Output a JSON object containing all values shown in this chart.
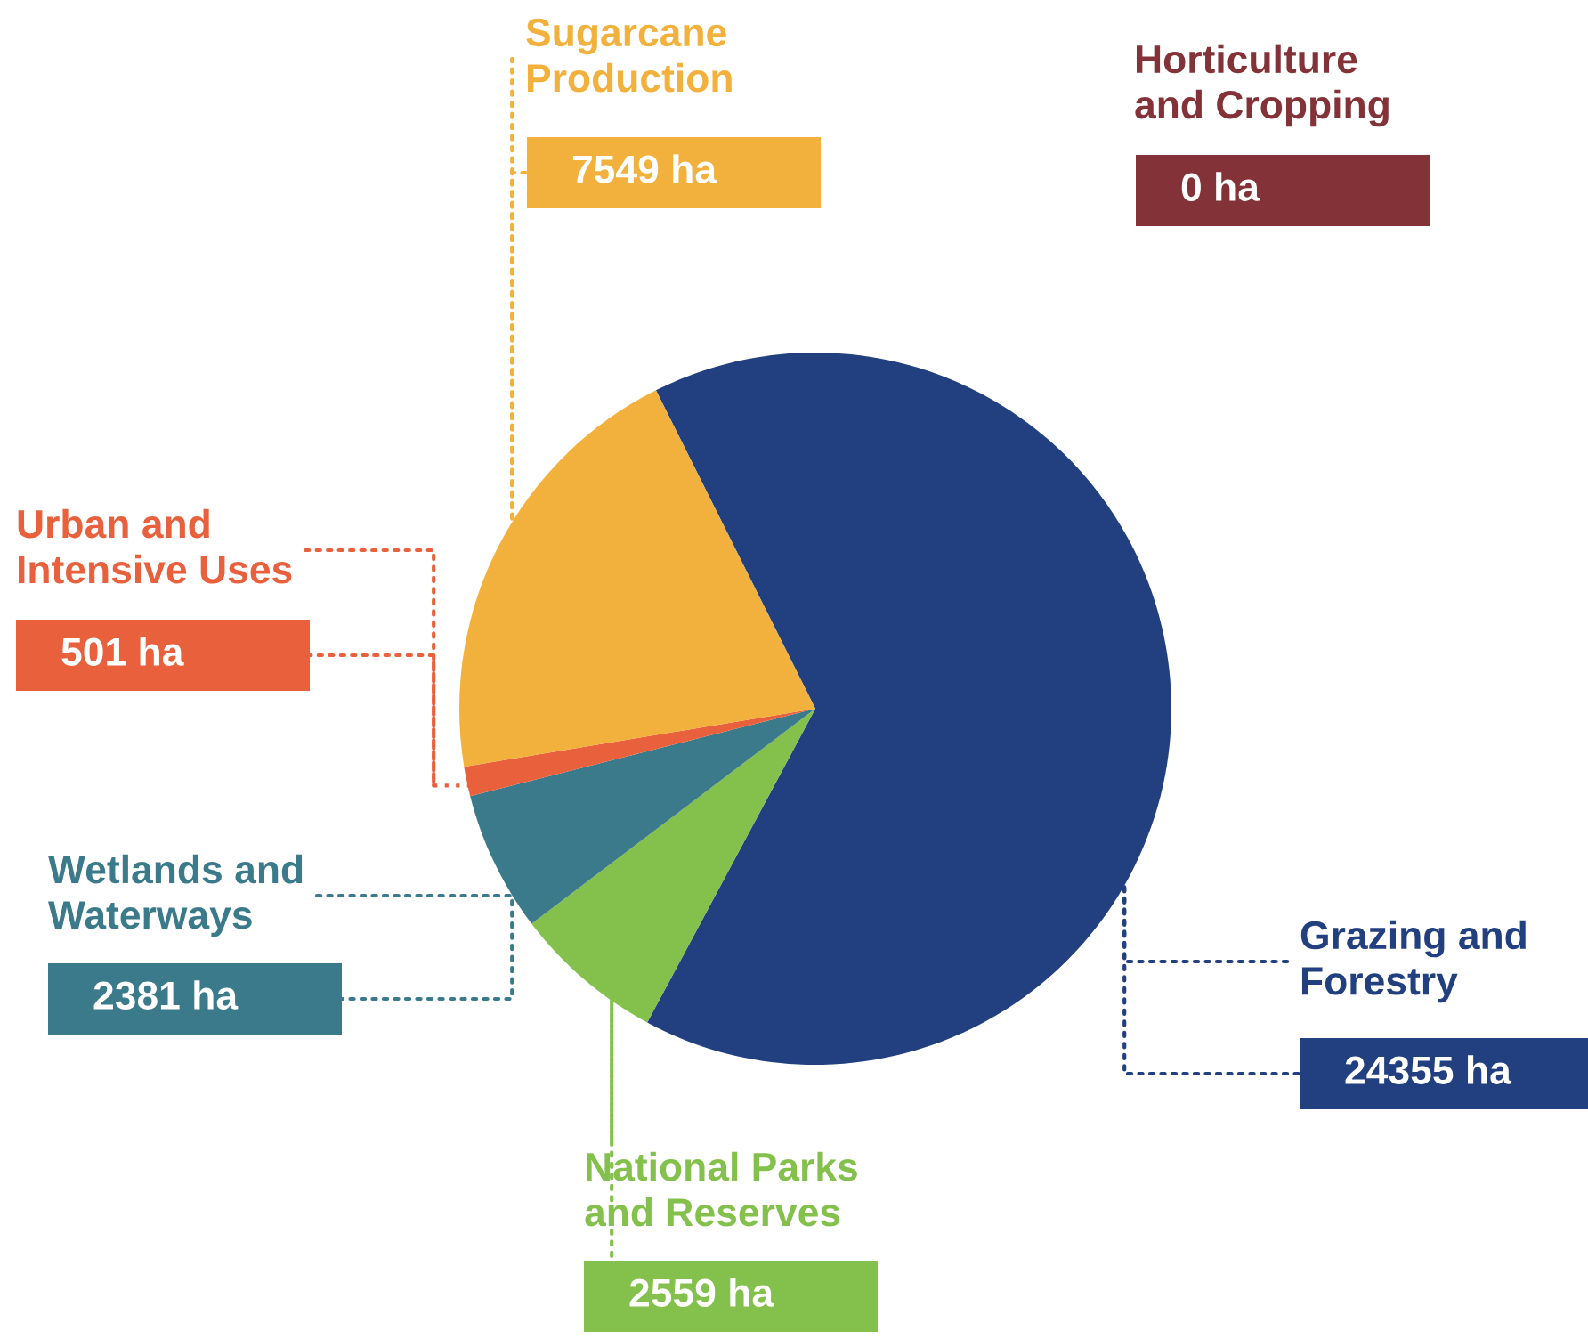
{
  "chart_data": {
    "type": "pie",
    "categories": [
      "Grazing and\nForestry",
      "National Parks\nand Reserves",
      "Wetlands and\nWaterways",
      "Urban and\nIntensive Uses",
      "Sugarcane\nProduction",
      "Horticulture\nand Cropping"
    ],
    "values": [
      24355,
      2559,
      2381,
      501,
      7549,
      0
    ],
    "value_labels": [
      "24355 ha",
      "2559 ha",
      "2381 ha",
      "501 ha",
      "7549 ha",
      "0 ha"
    ],
    "colors": [
      "#22407f",
      "#84c04c",
      "#3b7a8a",
      "#e8603c",
      "#f2b13c",
      "#833338"
    ],
    "legend": false
  }
}
